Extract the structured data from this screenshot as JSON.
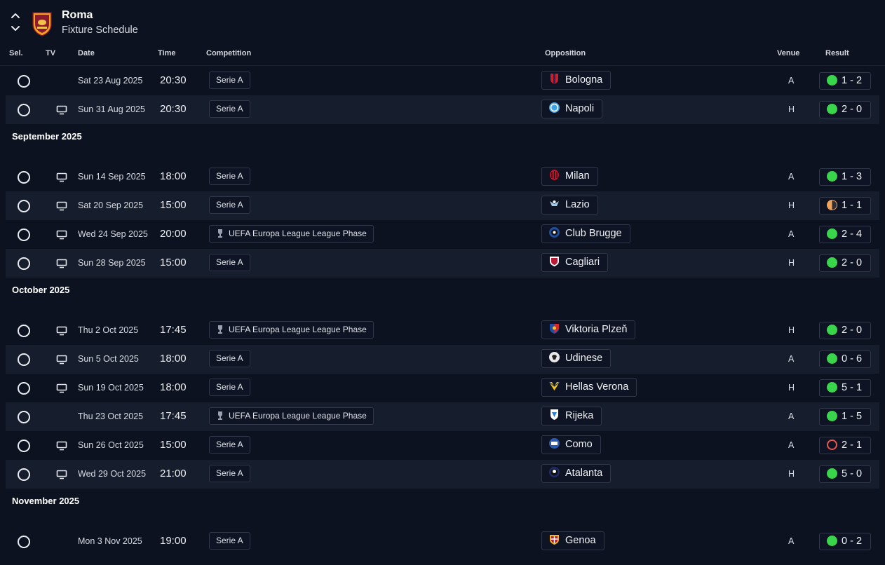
{
  "header": {
    "team_name": "Roma",
    "page_title": "Fixture Schedule"
  },
  "columns": {
    "sel": "Sel.",
    "tv": "TV",
    "date": "Date",
    "time": "Time",
    "competition": "Competition",
    "opposition": "Opposition",
    "venue": "Venue",
    "result": "Result"
  },
  "colors": {
    "background": "#0c1220",
    "row_alt": "#161d2c",
    "win": "#39d64c",
    "draw": "#f0a35a",
    "loss": "#e25a52"
  },
  "months": [
    {
      "label": "",
      "fixtures": [
        {
          "tv": false,
          "date": "Sat 23 Aug 2025",
          "time": "20:30",
          "competition": "Serie A",
          "cup": false,
          "opponent": "Bologna",
          "badge": "bologna-badge",
          "venue": "A",
          "outcome": "W",
          "score": "1 - 2"
        },
        {
          "tv": true,
          "date": "Sun 31 Aug 2025",
          "time": "20:30",
          "competition": "Serie A",
          "cup": false,
          "opponent": "Napoli",
          "badge": "napoli-badge",
          "venue": "H",
          "outcome": "W",
          "score": "2 - 0"
        }
      ]
    },
    {
      "label": "September 2025",
      "fixtures": [
        {
          "tv": true,
          "date": "Sun 14 Sep 2025",
          "time": "18:00",
          "competition": "Serie A",
          "cup": false,
          "opponent": "Milan",
          "badge": "milan-badge",
          "venue": "A",
          "outcome": "W",
          "score": "1 - 3"
        },
        {
          "tv": true,
          "date": "Sat 20 Sep 2025",
          "time": "15:00",
          "competition": "Serie A",
          "cup": false,
          "opponent": "Lazio",
          "badge": "lazio-badge",
          "venue": "H",
          "outcome": "D",
          "score": "1 - 1"
        },
        {
          "tv": true,
          "date": "Wed 24 Sep 2025",
          "time": "20:00",
          "competition": "UEFA Europa League League Phase",
          "cup": true,
          "opponent": "Club Brugge",
          "badge": "club-brugge-badge",
          "venue": "A",
          "outcome": "W",
          "score": "2 - 4"
        },
        {
          "tv": true,
          "date": "Sun 28 Sep 2025",
          "time": "15:00",
          "competition": "Serie A",
          "cup": false,
          "opponent": "Cagliari",
          "badge": "cagliari-badge",
          "venue": "H",
          "outcome": "W",
          "score": "2 - 0"
        }
      ]
    },
    {
      "label": "October 2025",
      "fixtures": [
        {
          "tv": true,
          "date": "Thu 2 Oct 2025",
          "time": "17:45",
          "competition": "UEFA Europa League League Phase",
          "cup": true,
          "opponent": "Viktoria Plzeň",
          "badge": "viktoria-plzen-badge",
          "venue": "H",
          "outcome": "W",
          "score": "2 - 0"
        },
        {
          "tv": true,
          "date": "Sun 5 Oct 2025",
          "time": "18:00",
          "competition": "Serie A",
          "cup": false,
          "opponent": "Udinese",
          "badge": "udinese-badge",
          "venue": "A",
          "outcome": "W",
          "score": "0 - 6"
        },
        {
          "tv": true,
          "date": "Sun 19 Oct 2025",
          "time": "18:00",
          "competition": "Serie A",
          "cup": false,
          "opponent": "Hellas Verona",
          "badge": "hellas-verona-badge",
          "venue": "H",
          "outcome": "W",
          "score": "5 - 1"
        },
        {
          "tv": false,
          "date": "Thu 23 Oct 2025",
          "time": "17:45",
          "competition": "UEFA Europa League League Phase",
          "cup": true,
          "opponent": "Rijeka",
          "badge": "rijeka-badge",
          "venue": "A",
          "outcome": "W",
          "score": "1 - 5"
        },
        {
          "tv": true,
          "date": "Sun 26 Oct 2025",
          "time": "15:00",
          "competition": "Serie A",
          "cup": false,
          "opponent": "Como",
          "badge": "como-badge",
          "venue": "A",
          "outcome": "L",
          "score": "2 - 1"
        },
        {
          "tv": true,
          "date": "Wed 29 Oct 2025",
          "time": "21:00",
          "competition": "Serie A",
          "cup": false,
          "opponent": "Atalanta",
          "badge": "atalanta-badge",
          "venue": "H",
          "outcome": "W",
          "score": "5 - 0"
        }
      ]
    },
    {
      "label": "November 2025",
      "fixtures": [
        {
          "tv": false,
          "date": "Mon 3 Nov 2025",
          "time": "19:00",
          "competition": "Serie A",
          "cup": false,
          "opponent": "Genoa",
          "badge": "genoa-badge",
          "venue": "A",
          "outcome": "W",
          "score": "0 - 2"
        }
      ]
    }
  ]
}
